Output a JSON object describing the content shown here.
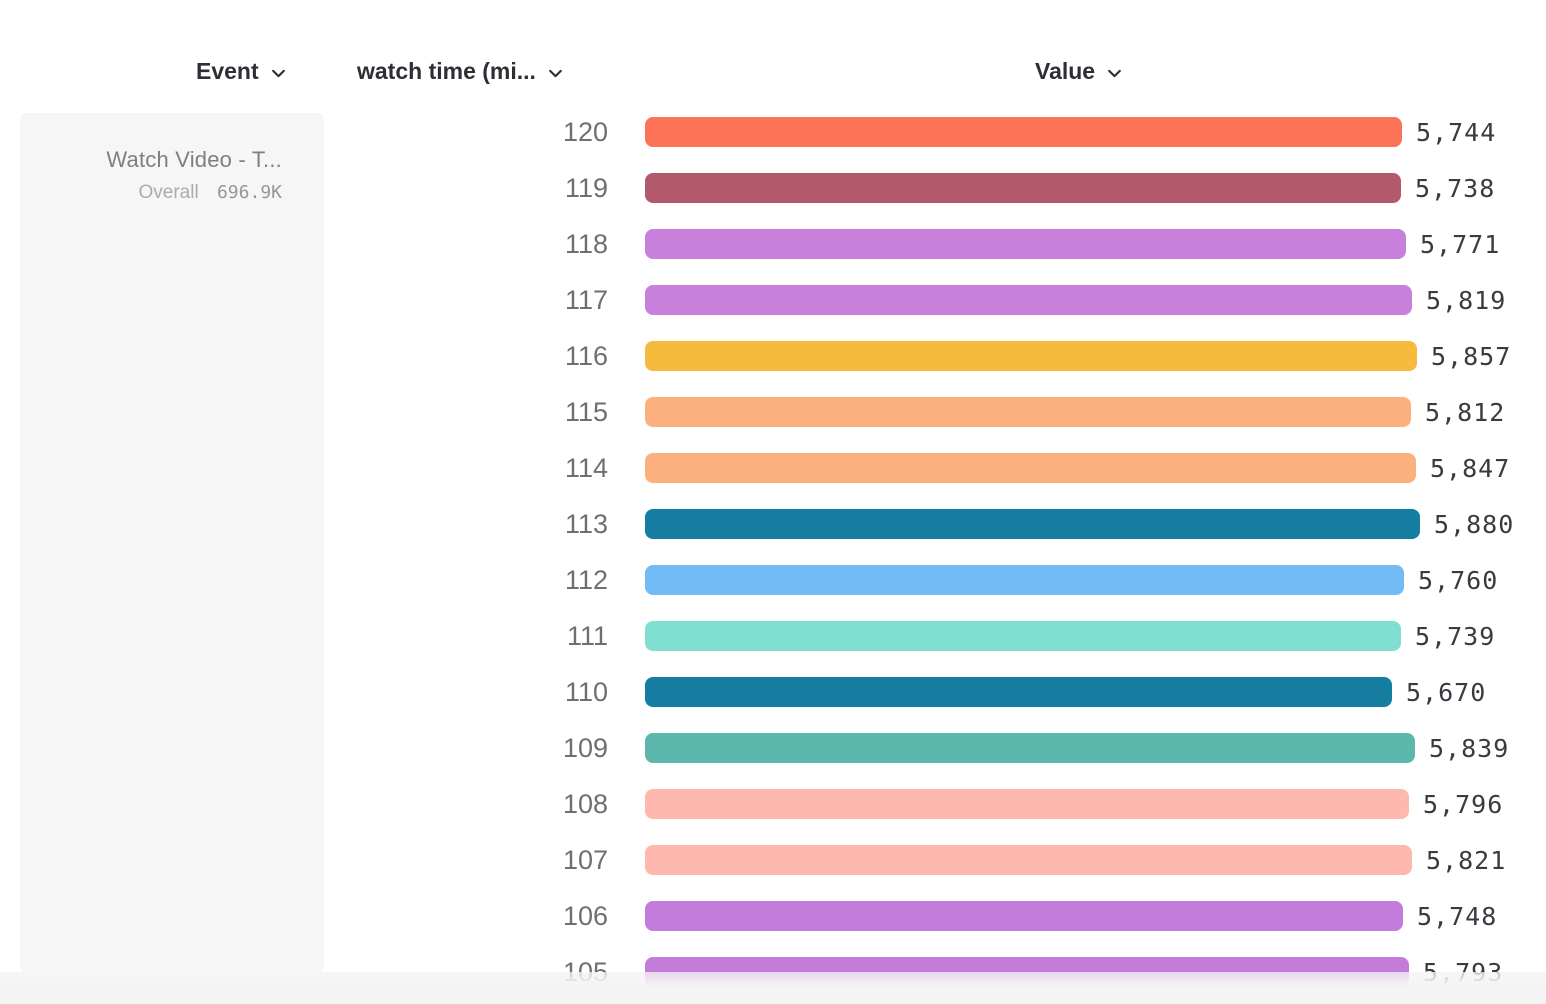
{
  "headers": {
    "event": "Event",
    "breakdown": "watch time (mi...",
    "value": "Value"
  },
  "panel": {
    "event_name": "Watch Video - T...",
    "overall_label": "Overall",
    "overall_value": "696.9K"
  },
  "chart_data": {
    "type": "bar",
    "orientation": "horizontal",
    "title": "",
    "xlabel": "Value",
    "ylabel": "watch time (mi...",
    "xlim": [
      0,
      5880
    ],
    "legend": "none",
    "grid": false,
    "categories": [
      "120",
      "119",
      "118",
      "117",
      "116",
      "115",
      "114",
      "113",
      "112",
      "111",
      "110",
      "109",
      "108",
      "107",
      "106",
      "105"
    ],
    "values": [
      5744,
      5738,
      5771,
      5819,
      5857,
      5812,
      5847,
      5880,
      5760,
      5739,
      5670,
      5839,
      5796,
      5821,
      5748,
      5793
    ],
    "value_labels": [
      "5,744",
      "5,738",
      "5,771",
      "5,819",
      "5,857",
      "5,812",
      "5,847",
      "5,880",
      "5,760",
      "5,739",
      "5,670",
      "5,839",
      "5,796",
      "5,821",
      "5,748",
      "5,793"
    ],
    "bar_colors": [
      "#fb7257",
      "#b25a6b",
      "#c980dc",
      "#c980dc",
      "#f6ba3d",
      "#fbb07d",
      "#fbb07d",
      "#147da0",
      "#73bbf4",
      "#81dfd1",
      "#147da0",
      "#5cb7ad",
      "#fdb9ad",
      "#fdb9ad",
      "#c37cda",
      "#c37cda"
    ]
  }
}
